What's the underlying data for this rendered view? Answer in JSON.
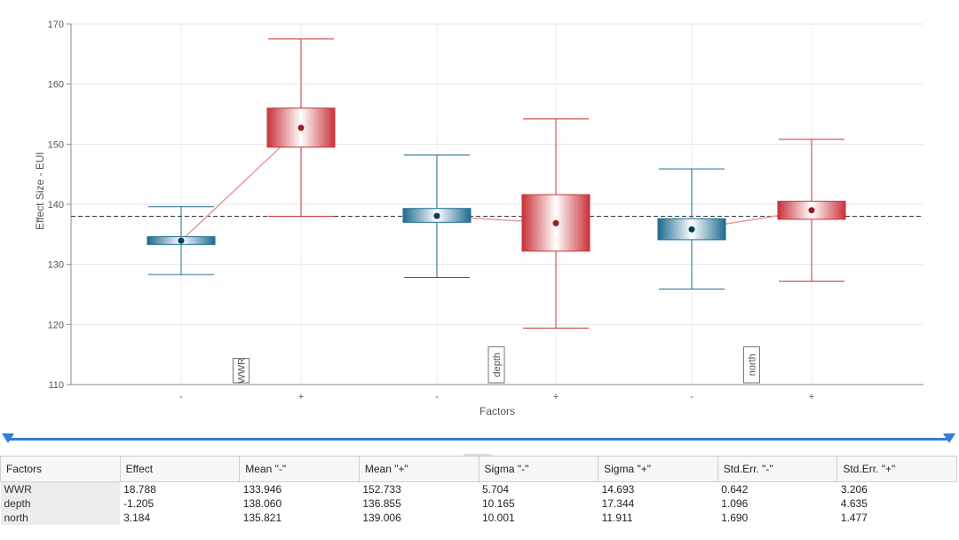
{
  "chart_data": {
    "type": "box",
    "xlabel": "Factors",
    "ylabel": "Effect Size - EUI",
    "ylim": [
      110,
      170
    ],
    "yticks": [
      110,
      120,
      130,
      140,
      150,
      160,
      170
    ],
    "grid": true,
    "reference_line": 138.0,
    "level_labels": [
      "-",
      "+"
    ],
    "factors": [
      {
        "name": "WWR",
        "minus": {
          "min": 128.3,
          "q1": 133.3,
          "q3": 134.6,
          "max": 139.6,
          "mean": 133.946
        },
        "plus": {
          "min": 138.0,
          "q1": 149.5,
          "q3": 156.0,
          "max": 167.5,
          "mean": 152.733
        }
      },
      {
        "name": "depth",
        "minus": {
          "min": 127.8,
          "q1": 137.0,
          "q3": 139.3,
          "max": 148.2,
          "mean": 138.06
        },
        "plus": {
          "min": 119.4,
          "q1": 132.2,
          "q3": 141.6,
          "max": 154.2,
          "mean": 136.855
        }
      },
      {
        "name": "north",
        "minus": {
          "min": 125.9,
          "q1": 134.1,
          "q3": 137.6,
          "max": 145.9,
          "mean": 135.821
        },
        "plus": {
          "min": 127.2,
          "q1": 137.5,
          "q3": 140.5,
          "max": 150.8,
          "mean": 139.006
        }
      }
    ]
  },
  "colors": {
    "minus": "#1e6b8f",
    "plus": "#c9323a",
    "reference": "#333333"
  },
  "table": {
    "headers": [
      "Factors",
      "Effect",
      "Mean \"-\"",
      "Mean \"+\"",
      "Sigma \"-\"",
      "Sigma \"+\"",
      "Std.Err. \"-\"",
      "Std.Err. \"+\""
    ],
    "rows": [
      [
        "WWR",
        "18.788",
        "133.946",
        "152.733",
        "5.704",
        "14.693",
        "0.642",
        "3.206"
      ],
      [
        "depth",
        "-1.205",
        "138.060",
        "136.855",
        "10.165",
        "17.344",
        "1.096",
        "4.635"
      ],
      [
        "north",
        "3.184",
        "135.821",
        "139.006",
        "10.001",
        "11.911",
        "1.690",
        "1.477"
      ]
    ]
  }
}
